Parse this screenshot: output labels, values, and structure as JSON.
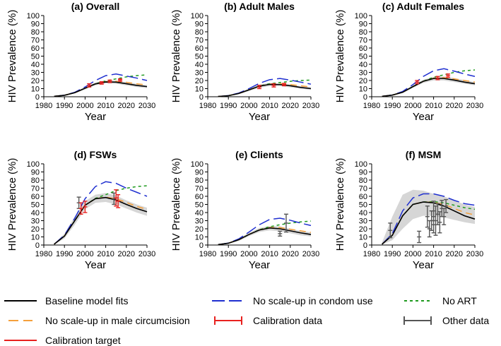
{
  "colors": {
    "baseline": "#000000",
    "no_circ": "#f5a03c",
    "calib_target": "#e8211f",
    "no_condom": "#1f2fd0",
    "calib_data": "#e8211f",
    "no_art": "#1e9a1e",
    "other_data": "#555555",
    "band": "#d6d6d6"
  },
  "legend": {
    "baseline": "Baseline model fits",
    "no_circ": "No scale-up in male circumcision",
    "calib_target": "Calibration target",
    "no_condom": "No scale-up in condom use",
    "calib_data": "Calibration data",
    "no_art": "No ART",
    "other_data": "Other data"
  },
  "chart_data": [
    {
      "type": "line",
      "title": "(a) Overall",
      "xlabel": "Year",
      "ylabel": "HIV Prevalence (%)",
      "xlim": [
        1980,
        2030
      ],
      "ylim": [
        0,
        100
      ],
      "xticks": [
        1980,
        1990,
        2000,
        2010,
        2020,
        2030
      ],
      "yticks": [
        0,
        10,
        20,
        30,
        40,
        50,
        60,
        70,
        80,
        90,
        100
      ],
      "x": [
        1985,
        1990,
        1995,
        2000,
        2005,
        2010,
        2015,
        2020,
        2025,
        2030
      ],
      "band": {
        "low": [
          0.2,
          1.2,
          4,
          9,
          14,
          16.5,
          16,
          14,
          12,
          10.5
        ],
        "high": [
          0.8,
          2.5,
          6,
          12,
          17.5,
          20,
          20,
          18,
          16,
          14
        ]
      },
      "series": [
        {
          "name": "baseline",
          "values": [
            0.5,
            1.8,
            5,
            10.5,
            15.8,
            18.2,
            18,
            16,
            14,
            12.5
          ]
        },
        {
          "name": "no_circ",
          "values": [
            0.5,
            1.8,
            5,
            10.5,
            15.8,
            18.5,
            19,
            17.8,
            16,
            14.5
          ]
        },
        {
          "name": "no_condom",
          "values": [
            0.5,
            1.9,
            5.5,
            12,
            20,
            26,
            28,
            25.5,
            23,
            20
          ]
        },
        {
          "name": "no_art",
          "values": [
            0.5,
            1.8,
            5,
            10.5,
            16,
            19.5,
            22,
            24.5,
            26,
            27
          ]
        }
      ],
      "calibration_data": [
        {
          "x": 2002,
          "y": 14,
          "lo": 12,
          "hi": 16
        },
        {
          "x": 2008,
          "y": 17,
          "lo": 15.5,
          "hi": 18.5
        },
        {
          "x": 2012,
          "y": 19,
          "lo": 17.5,
          "hi": 20.5
        },
        {
          "x": 2017,
          "y": 20.6,
          "lo": 19,
          "hi": 22
        }
      ],
      "other_data": []
    },
    {
      "type": "line",
      "title": "(b) Adult Males",
      "xlabel": "Year",
      "ylabel": "HIV Prevalence (%)",
      "xlim": [
        1980,
        2030
      ],
      "ylim": [
        0,
        100
      ],
      "xticks": [
        1980,
        1990,
        2000,
        2010,
        2020,
        2030
      ],
      "yticks": [
        0,
        10,
        20,
        30,
        40,
        50,
        60,
        70,
        80,
        90,
        100
      ],
      "x": [
        1985,
        1990,
        1995,
        2000,
        2005,
        2010,
        2015,
        2020,
        2025,
        2030
      ],
      "band": {
        "low": [
          0.1,
          0.8,
          3,
          7,
          11,
          13,
          13,
          11.5,
          10,
          8.5
        ],
        "high": [
          0.6,
          2,
          5,
          10,
          15,
          17,
          16.5,
          15,
          13,
          11.5
        ]
      },
      "series": [
        {
          "name": "baseline",
          "values": [
            0.3,
            1.3,
            4,
            8.5,
            13,
            15.2,
            15,
            13.5,
            11.5,
            10
          ]
        },
        {
          "name": "no_circ",
          "values": [
            0.3,
            1.3,
            4,
            8.5,
            13,
            15.5,
            16,
            15,
            13.5,
            12
          ]
        },
        {
          "name": "no_condom",
          "values": [
            0.3,
            1.4,
            4.5,
            10,
            16.5,
            21,
            22.5,
            20.5,
            18,
            15.5
          ]
        },
        {
          "name": "no_art",
          "values": [
            0.3,
            1.3,
            4,
            8.5,
            13.2,
            16,
            17.5,
            19,
            20,
            20.5
          ]
        }
      ],
      "calibration_data": [
        {
          "x": 2005,
          "y": 12,
          "lo": 10,
          "hi": 14
        },
        {
          "x": 2012,
          "y": 14,
          "lo": 12,
          "hi": 16
        },
        {
          "x": 2017,
          "y": 15,
          "lo": 13.5,
          "hi": 16.5
        }
      ],
      "other_data": []
    },
    {
      "type": "line",
      "title": "(c) Adult Females",
      "xlabel": "Year",
      "ylabel": "HIV Prevalence (%)",
      "xlim": [
        1980,
        2030
      ],
      "ylim": [
        0,
        100
      ],
      "xticks": [
        1980,
        1990,
        2000,
        2010,
        2020,
        2030
      ],
      "yticks": [
        0,
        10,
        20,
        30,
        40,
        50,
        60,
        70,
        80,
        90,
        100
      ],
      "x": [
        1985,
        1990,
        1995,
        2000,
        2005,
        2010,
        2015,
        2020,
        2025,
        2030
      ],
      "band": {
        "low": [
          0.2,
          1.3,
          4.5,
          11,
          17,
          20,
          20,
          18,
          16,
          14
        ],
        "high": [
          0.8,
          2.8,
          7,
          14,
          21,
          24.5,
          25,
          23,
          20.5,
          18
        ]
      },
      "series": [
        {
          "name": "baseline",
          "values": [
            0.5,
            2,
            5.5,
            12.5,
            19,
            22.5,
            22.5,
            20.5,
            18,
            16
          ]
        },
        {
          "name": "no_circ",
          "values": [
            0.5,
            2,
            5.5,
            12.5,
            19,
            22.8,
            23.5,
            22,
            20,
            18
          ]
        },
        {
          "name": "no_condom",
          "values": [
            0.5,
            2.1,
            6.5,
            15,
            25,
            32,
            34.5,
            31.5,
            28,
            25
          ]
        },
        {
          "name": "no_art",
          "values": [
            0.5,
            2,
            5.5,
            12.5,
            19.2,
            24,
            27,
            30,
            32,
            33
          ]
        }
      ],
      "calibration_data": [
        {
          "x": 2002,
          "y": 18,
          "lo": 16,
          "hi": 20
        },
        {
          "x": 2012,
          "y": 23,
          "lo": 21,
          "hi": 25
        },
        {
          "x": 2017,
          "y": 26,
          "lo": 24,
          "hi": 28
        }
      ],
      "other_data": []
    },
    {
      "type": "line",
      "title": "(d) FSWs",
      "xlabel": "Year",
      "ylabel": "HIV Prevalence (%)",
      "xlim": [
        1980,
        2030
      ],
      "ylim": [
        0,
        100
      ],
      "xticks": [
        1980,
        1990,
        2000,
        2010,
        2020,
        2030
      ],
      "yticks": [
        0,
        10,
        20,
        30,
        40,
        50,
        60,
        70,
        80,
        90,
        100
      ],
      "x": [
        1985,
        1990,
        1995,
        2000,
        2005,
        2010,
        2015,
        2020,
        2025,
        2030
      ],
      "band": {
        "low": [
          0.5,
          8,
          25,
          44,
          52,
          53,
          50,
          45,
          40,
          36
        ],
        "high": [
          1.5,
          14,
          35,
          54,
          62,
          64,
          61,
          55,
          50,
          46
        ]
      },
      "series": [
        {
          "name": "baseline",
          "values": [
            1,
            11,
            30,
            49,
            57,
            58.5,
            55.5,
            50,
            45,
            41
          ]
        },
        {
          "name": "no_circ",
          "values": [
            1,
            11,
            30,
            49,
            57,
            59,
            57,
            52.5,
            47.5,
            44
          ]
        },
        {
          "name": "no_condom",
          "values": [
            1,
            12,
            33,
            57,
            72,
            78,
            76,
            70,
            65,
            60
          ]
        },
        {
          "name": "no_art",
          "values": [
            1,
            11,
            30,
            49,
            57.5,
            62,
            67,
            70,
            72,
            73
          ]
        }
      ],
      "calibration_data": [
        {
          "x": 1998,
          "y": 45,
          "lo": 38,
          "hi": 52
        },
        {
          "x": 2000,
          "y": 47,
          "lo": 40,
          "hi": 54
        },
        {
          "x": 2015,
          "y": 58,
          "lo": 48,
          "hi": 68
        },
        {
          "x": 2016,
          "y": 54,
          "lo": 46,
          "hi": 62
        }
      ],
      "other_data": [
        {
          "x": 1997,
          "y": 52,
          "lo": 45,
          "hi": 59
        },
        {
          "x": 2014,
          "y": 57,
          "lo": 50,
          "hi": 64
        }
      ]
    },
    {
      "type": "line",
      "title": "(e) Clients",
      "xlabel": "Year",
      "ylabel": "HIV Prevalence (%)",
      "xlim": [
        1980,
        2030
      ],
      "ylim": [
        0,
        100
      ],
      "xticks": [
        1980,
        1990,
        2000,
        2010,
        2020,
        2030
      ],
      "yticks": [
        0,
        10,
        20,
        30,
        40,
        50,
        60,
        70,
        80,
        90,
        100
      ],
      "x": [
        1985,
        1990,
        1995,
        2000,
        2005,
        2010,
        2015,
        2020,
        2025,
        2030
      ],
      "band": {
        "low": [
          0.2,
          1.5,
          5,
          11,
          16,
          18,
          17,
          14.5,
          12,
          10.5
        ],
        "high": [
          0.8,
          3,
          8,
          15,
          21,
          23.5,
          23,
          20,
          17.5,
          15.5
        ]
      },
      "series": [
        {
          "name": "baseline",
          "values": [
            0.5,
            2.2,
            6.5,
            13,
            18.5,
            21,
            20,
            17.5,
            15,
            13
          ]
        },
        {
          "name": "no_circ",
          "values": [
            0.5,
            2.2,
            6.5,
            13,
            18.5,
            21.5,
            21.5,
            19.5,
            17.5,
            15.5
          ]
        },
        {
          "name": "no_condom",
          "values": [
            0.5,
            2.4,
            7.5,
            16,
            25,
            31.5,
            33,
            30.5,
            27,
            24
          ]
        },
        {
          "name": "no_art",
          "values": [
            0.5,
            2.2,
            6.5,
            13,
            18.8,
            22.5,
            25,
            27,
            28.5,
            29.5
          ]
        }
      ],
      "calibration_data": [],
      "other_data": [
        {
          "x": 2015,
          "y": 14,
          "lo": 11,
          "hi": 17
        },
        {
          "x": 2018,
          "y": 27,
          "lo": 16,
          "hi": 38
        }
      ]
    },
    {
      "type": "line",
      "title": "(f) MSM",
      "xlabel": "Year",
      "ylabel": "HIV Prevalence (%)",
      "xlim": [
        1980,
        2030
      ],
      "ylim": [
        0,
        100
      ],
      "xticks": [
        1980,
        1990,
        2000,
        2010,
        2020,
        2030
      ],
      "yticks": [
        0,
        10,
        20,
        30,
        40,
        50,
        60,
        70,
        80,
        90,
        100
      ],
      "x": [
        1985,
        1990,
        1995,
        2000,
        2005,
        2010,
        2015,
        2020,
        2025,
        2030
      ],
      "band": {
        "low": [
          0.5,
          6,
          20,
          32,
          36,
          36,
          34,
          31,
          28,
          26
        ],
        "high": [
          3,
          35,
          62,
          68,
          67,
          63,
          60,
          55,
          50,
          47
        ]
      },
      "series": [
        {
          "name": "baseline",
          "values": [
            1,
            12,
            36,
            50,
            53,
            52,
            48,
            42,
            36,
            32
          ]
        },
        {
          "name": "no_circ",
          "values": [
            1,
            12,
            36,
            50,
            53,
            52.5,
            50,
            45,
            40,
            37
          ]
        },
        {
          "name": "no_condom",
          "values": [
            1,
            14,
            42,
            58,
            63,
            63,
            60,
            55,
            51,
            49
          ]
        },
        {
          "name": "no_art",
          "values": [
            1,
            12,
            36,
            50,
            53,
            53.5,
            52,
            49,
            46,
            44
          ]
        }
      ],
      "calibration_data": [],
      "other_data": [
        {
          "x": 1989,
          "y": 18,
          "lo": 9,
          "hi": 27
        },
        {
          "x": 2003,
          "y": 10,
          "lo": 3,
          "hi": 17
        },
        {
          "x": 2007,
          "y": 35,
          "lo": 22,
          "hi": 48
        },
        {
          "x": 2008,
          "y": 20,
          "lo": 10,
          "hi": 30
        },
        {
          "x": 2009,
          "y": 30,
          "lo": 18,
          "hi": 42
        },
        {
          "x": 2010,
          "y": 25,
          "lo": 15,
          "hi": 35
        },
        {
          "x": 2010,
          "y": 42,
          "lo": 30,
          "hi": 54
        },
        {
          "x": 2011,
          "y": 30,
          "lo": 12,
          "hi": 48
        },
        {
          "x": 2012,
          "y": 38,
          "lo": 25,
          "hi": 51
        },
        {
          "x": 2013,
          "y": 28,
          "lo": 15,
          "hi": 41
        },
        {
          "x": 2014,
          "y": 45,
          "lo": 35,
          "hi": 55
        },
        {
          "x": 2015,
          "y": 35,
          "lo": 25,
          "hi": 45
        },
        {
          "x": 2016,
          "y": 48,
          "lo": 40,
          "hi": 56
        }
      ]
    }
  ]
}
